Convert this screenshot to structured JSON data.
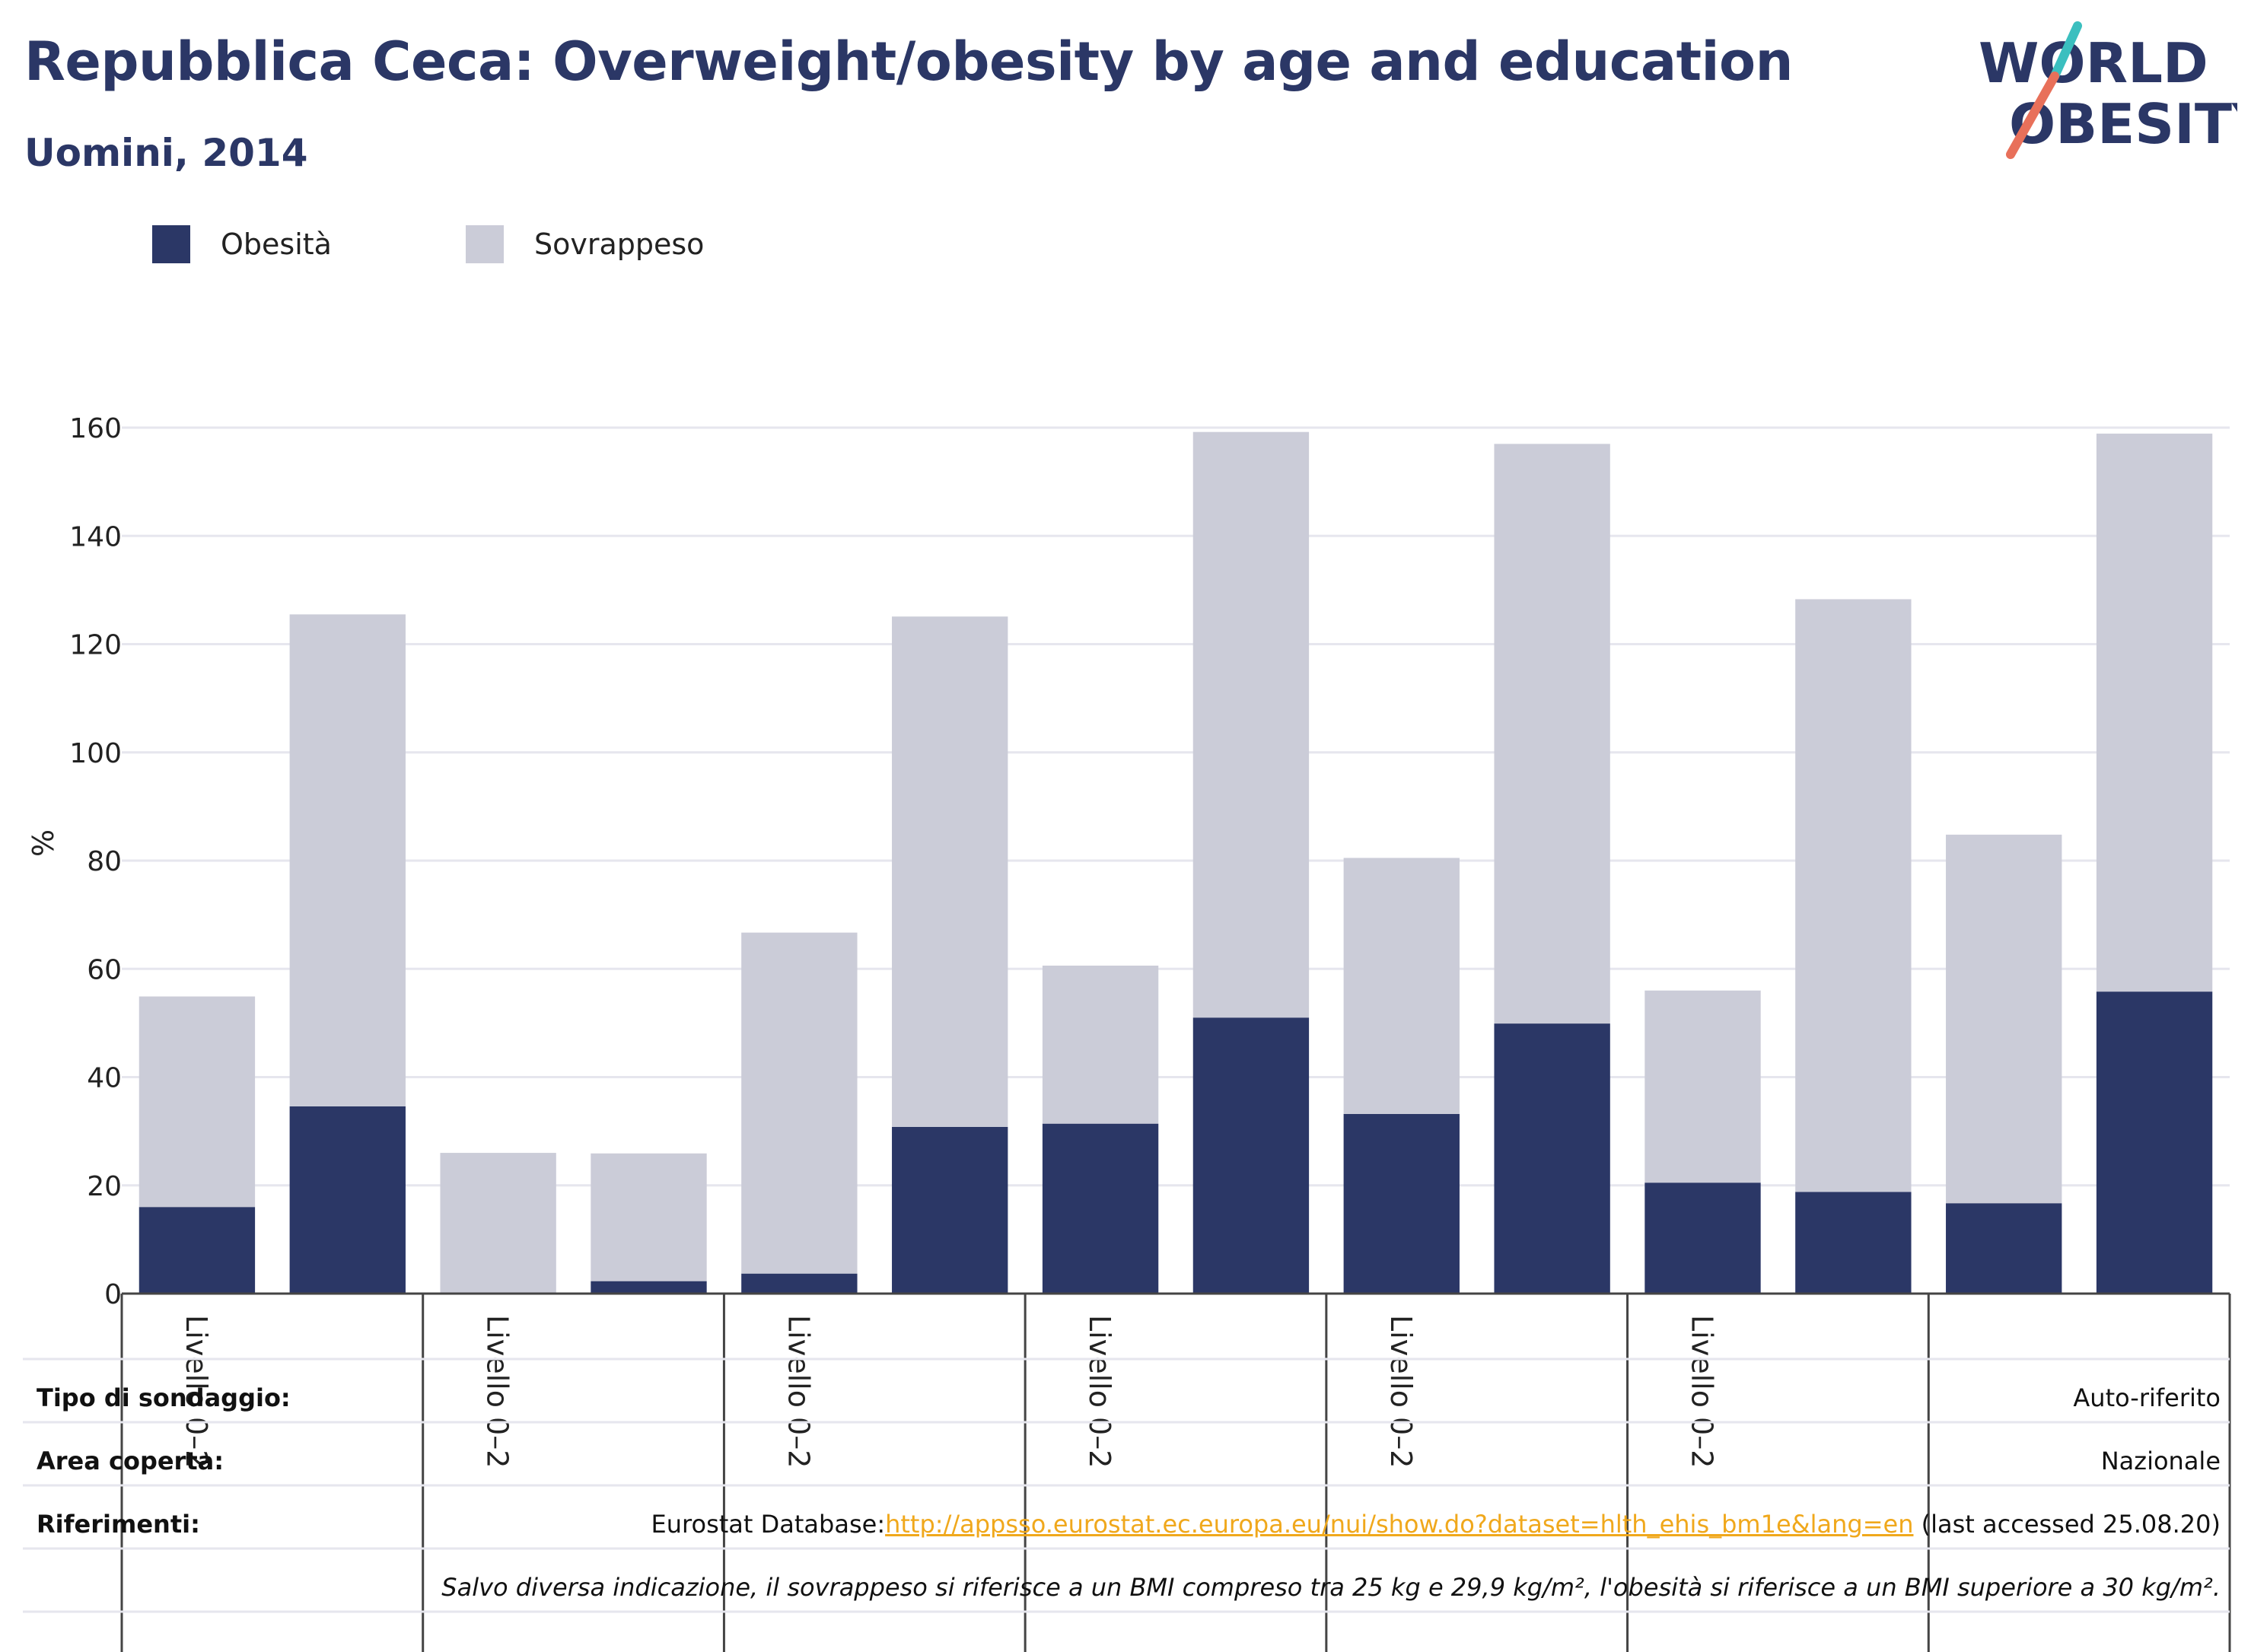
{
  "title": "Repubblica Ceca: Overweight/obesity by age and education",
  "subtitle": "Uomini, 2014",
  "logo": {
    "line1": "WORLD",
    "line2": "OBESITY"
  },
  "colors": {
    "obesity": "#2b3766",
    "overweight": "#cbccd8",
    "title": "#2b3766",
    "link": "#f0a81c",
    "logo_teal": "#3bbfbf",
    "logo_coral": "#e8705a"
  },
  "chart_data": {
    "type": "bar",
    "stacked": true,
    "categories": [
      "Livello 0–2",
      "",
      "Livello 0–2",
      "",
      "Livello 0–2",
      "",
      "Livello 0–2",
      "",
      "Livello 0–2",
      "",
      "Livello 0–2",
      "",
      "",
      ""
    ],
    "series": [
      {
        "name": "Obesità",
        "values": [
          16,
          34.6,
          0,
          2.3,
          3.7,
          30.8,
          31.4,
          51,
          33.2,
          49.9,
          20.5,
          18.8,
          16.7,
          55.8
        ]
      },
      {
        "name": "Sovrappeso",
        "values": [
          38.9,
          90.9,
          26,
          23.6,
          63,
          94.3,
          29.2,
          108.2,
          47.3,
          107.1,
          35.5,
          109.5,
          68.1,
          103.1
        ]
      }
    ],
    "ylabel": "%",
    "xlabel": "",
    "ylim": [
      0,
      160
    ],
    "yticks": [
      0,
      20,
      40,
      60,
      80,
      100,
      120,
      140,
      160
    ],
    "grid": true,
    "legend_position": "top-left"
  },
  "info": {
    "survey_type_label": "Tipo di sondaggio:",
    "survey_type_value": "Auto-riferito",
    "area_label": "Area coperta:",
    "area_value": "Nazionale",
    "references_label": "Riferimenti:",
    "references_prefix": "Eurostat Database:",
    "references_link": "http://appsso.eurostat.ec.europa.eu/nui/show.do?dataset=hlth_ehis_bm1e&lang=en",
    "references_suffix": " (last accessed 25.08.20)",
    "note": "Salvo diversa indicazione, il sovrappeso si riferisce a un BMI compreso tra 25 kg e 29,9 kg/m², l'obesità si riferisce a un BMI superiore a 30 kg/m²."
  }
}
